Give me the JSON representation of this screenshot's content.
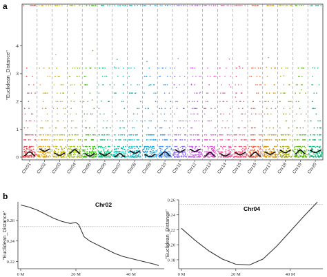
{
  "chart_data": [
    {
      "panel": "a",
      "type": "scatter",
      "ylabel": "\"Euclidean_Distance\"",
      "yticks": [
        0,
        1,
        2,
        3,
        4
      ],
      "ylim": [
        -0.1,
        5.5
      ],
      "categories": [
        "Chr01",
        "Chr02",
        "Chr03",
        "Chr04",
        "Chr05",
        "Chr06",
        "Chr07",
        "Chr08",
        "Chr09",
        "Chr10",
        "Chr11",
        "Chr12",
        "Chr13",
        "Chr14",
        "Chr15",
        "Chr16",
        "Chr17",
        "Chr18",
        "Chr19",
        "Chr20"
      ],
      "colors": [
        "#e8434b",
        "#e0a10f",
        "#c8b400",
        "#8fbf00",
        "#2fb800",
        "#00bf6f",
        "#00c1ac",
        "#00b5cc",
        "#00a6e6",
        "#3c8ef5",
        "#8f6cf0",
        "#c95cea",
        "#e24fd1",
        "#f05aa5",
        "#f0587a",
        "#e85f3a",
        "#d89000",
        "#a6a800",
        "#52b800",
        "#00b96e"
      ],
      "level_values": [
        0.18,
        0.38,
        0.62,
        0.8,
        1.05,
        1.3,
        1.55,
        1.75,
        2.0,
        2.3,
        2.6,
        2.9,
        3.2,
        5.45
      ],
      "trend_means": [
        0.12,
        0.25,
        0.1,
        0.2,
        0.08,
        0.1,
        0.06,
        0.18,
        0.05,
        0.12,
        0.22,
        0.24,
        0.1,
        0.08,
        0.12,
        0.1,
        0.14,
        0.2,
        0.18,
        0.2
      ],
      "grid": false
    },
    {
      "panel": "b",
      "type": "line",
      "title": "Chr02",
      "ylabel": "\"Euclidean_Distance\"",
      "yticks": [
        0.22,
        0.24,
        0.26
      ],
      "ylim": [
        0.213,
        0.278
      ],
      "xticks": [
        "0 M",
        "20 M",
        "40 M"
      ],
      "xlim_mb": [
        -1,
        52
      ],
      "threshold": 0.254,
      "x": [
        0,
        3,
        6,
        9,
        12,
        15,
        18,
        20,
        21,
        22,
        23,
        25,
        28,
        31,
        34,
        37,
        40,
        43,
        46,
        49,
        50
      ],
      "y": [
        0.275,
        0.273,
        0.27,
        0.266,
        0.262,
        0.259,
        0.257,
        0.258,
        0.256,
        0.25,
        0.244,
        0.24,
        0.236,
        0.232,
        0.228,
        0.225,
        0.223,
        0.221,
        0.219,
        0.217,
        0.216
      ]
    },
    {
      "panel": "b",
      "type": "line",
      "title": "Chr04",
      "ylabel": "\"Euclidean_Distance\"",
      "yticks": [
        0.18,
        0.2,
        0.22,
        0.24,
        0.26
      ],
      "ylim": [
        0.168,
        0.26
      ],
      "xticks": [
        "0 M",
        "20 M",
        "40 M"
      ],
      "xlim_mb": [
        -1,
        52
      ],
      "threshold": 0.254,
      "x": [
        0,
        5,
        10,
        15,
        20,
        25,
        30,
        35,
        40,
        45,
        50
      ],
      "y": [
        0.222,
        0.206,
        0.192,
        0.181,
        0.174,
        0.173,
        0.181,
        0.198,
        0.218,
        0.238,
        0.257
      ]
    }
  ],
  "labels": {
    "panel_a": "a",
    "panel_b": "b"
  }
}
